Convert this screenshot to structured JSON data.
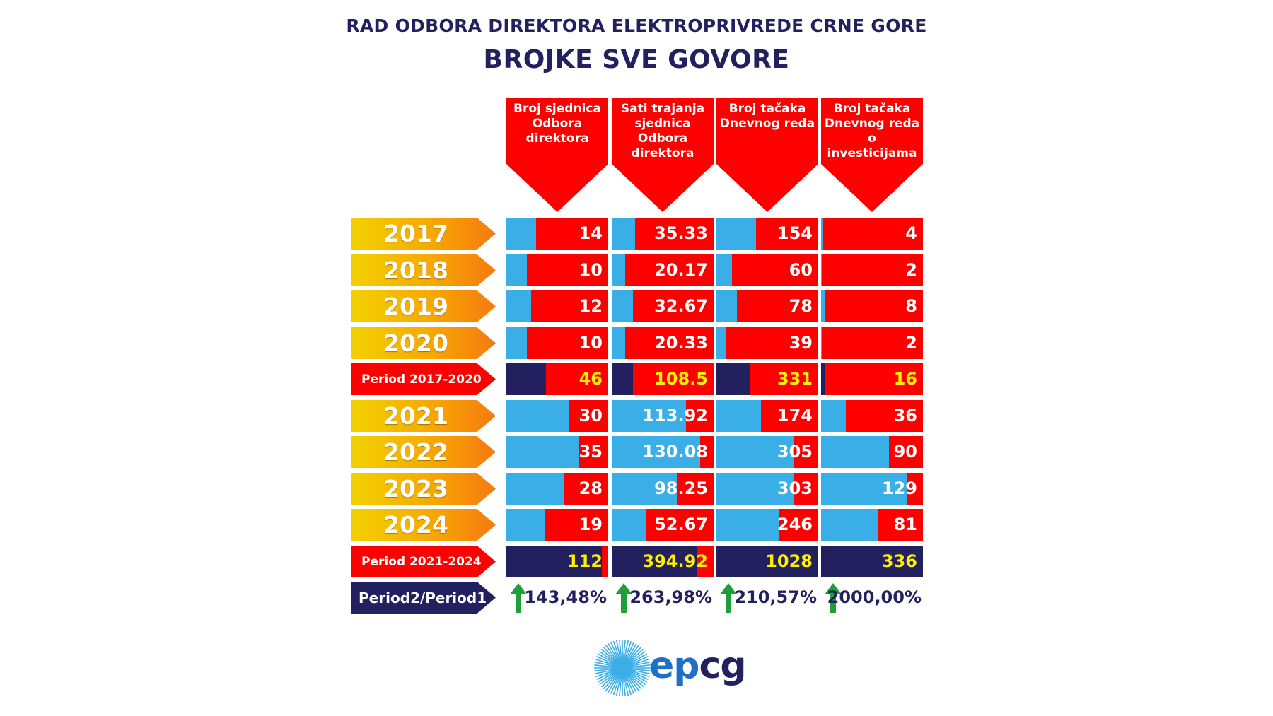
{
  "title": "RAD ODBORA DIREKTORA ELEKTROPRIVREDE CRNE GORE",
  "subtitle": "BROJKE SVE GOVORE",
  "chart_data": {
    "type": "table",
    "columns": [
      "Broj sjednica Odbora direktora",
      "Sati trajanja sjednica Odbora direktora",
      "Broj tačaka Dnevnog reda",
      "Broj tačaka Dnevnog reda o investicijama"
    ],
    "rows": [
      {
        "label": "2017",
        "kind": "year",
        "values": [
          "14",
          "35.33",
          "154",
          "4"
        ],
        "fill": [
          0.29,
          0.23,
          0.39,
          0.02
        ]
      },
      {
        "label": "2018",
        "kind": "year",
        "values": [
          "10",
          "20.17",
          "60",
          "2"
        ],
        "fill": [
          0.2,
          0.13,
          0.15,
          0.01
        ]
      },
      {
        "label": "2019",
        "kind": "year",
        "values": [
          "12",
          "32.67",
          "78",
          "8"
        ],
        "fill": [
          0.24,
          0.21,
          0.2,
          0.04
        ]
      },
      {
        "label": "2020",
        "kind": "year",
        "values": [
          "10",
          "20.33",
          "39",
          "2"
        ],
        "fill": [
          0.2,
          0.13,
          0.1,
          0.01
        ]
      },
      {
        "label": "Period 2017-2020",
        "kind": "period",
        "values": [
          "46",
          "108.5",
          "331",
          "16"
        ],
        "fill": [
          0.39,
          0.21,
          0.33,
          0.04
        ]
      },
      {
        "label": "2021",
        "kind": "year",
        "values": [
          "30",
          "113.92",
          "174",
          "36"
        ],
        "fill": [
          0.61,
          0.73,
          0.44,
          0.24
        ]
      },
      {
        "label": "2022",
        "kind": "year",
        "values": [
          "35",
          "130.08",
          "305",
          "90"
        ],
        "fill": [
          0.71,
          0.87,
          0.76,
          0.67
        ]
      },
      {
        "label": "2023",
        "kind": "year",
        "values": [
          "28",
          "98.25",
          "303",
          "129"
        ],
        "fill": [
          0.56,
          0.64,
          0.76,
          0.85
        ]
      },
      {
        "label": "2024",
        "kind": "year",
        "values": [
          "19",
          "52.67",
          "246",
          "81"
        ],
        "fill": [
          0.38,
          0.34,
          0.62,
          0.56
        ]
      },
      {
        "label": "Period 2021-2024",
        "kind": "period",
        "values": [
          "112",
          "394.92",
          "1028",
          "336"
        ],
        "fill": [
          0.94,
          0.83,
          1.0,
          1.0
        ]
      }
    ],
    "ratio": {
      "label": "Period2/Period1",
      "values": [
        "143,48%",
        "263,98%",
        "210,57%",
        "2000,00%"
      ]
    }
  },
  "logo": {
    "prefix": "ep",
    "suffix": "cg"
  },
  "colors": {
    "red": "#ff0000",
    "blue": "#3aaee6",
    "navy": "#23205f",
    "yellow": "#ffef00",
    "arrow": "#1f9e3a"
  }
}
